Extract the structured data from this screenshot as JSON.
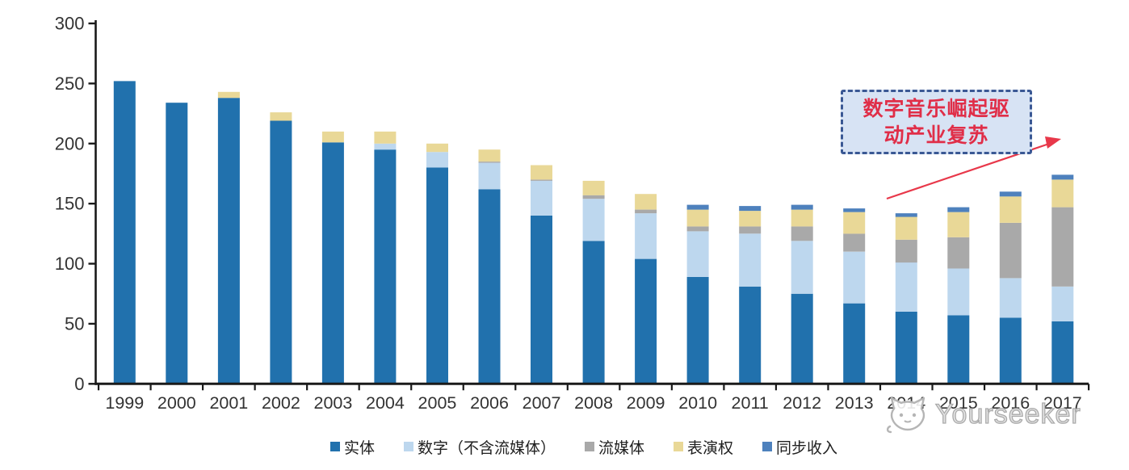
{
  "chart_data": {
    "type": "bar",
    "subtype": "stacked",
    "title": "",
    "xlabel": "",
    "ylabel": "",
    "ylim": [
      0,
      300
    ],
    "ytick_step": 50,
    "yticks": [
      "0",
      "50",
      "100",
      "150",
      "200",
      "250",
      "300"
    ],
    "grid": false,
    "legend_position": "bottom",
    "categories": [
      "1999",
      "2000",
      "2001",
      "2002",
      "2003",
      "2004",
      "2005",
      "2006",
      "2007",
      "2008",
      "2009",
      "2010",
      "2011",
      "2012",
      "2013",
      "2014",
      "2015",
      "2016",
      "2017"
    ],
    "series": [
      {
        "name": "实体",
        "color": "#2171ad",
        "values": [
          252,
          234,
          238,
          219,
          201,
          195,
          180,
          162,
          140,
          119,
          104,
          89,
          81,
          75,
          67,
          60,
          57,
          55,
          52
        ]
      },
      {
        "name": "数字（不含流媒体）",
        "color": "#bdd7ee",
        "values": [
          0,
          0,
          0,
          0,
          0,
          5,
          13,
          22,
          29,
          35,
          38,
          38,
          44,
          44,
          43,
          41,
          39,
          33,
          29
        ]
      },
      {
        "name": "流媒体",
        "color": "#a9a9a9",
        "values": [
          0,
          0,
          0,
          0,
          0,
          0,
          0,
          1,
          1,
          3,
          3,
          4,
          6,
          12,
          15,
          19,
          26,
          46,
          66
        ]
      },
      {
        "name": "表演权",
        "color": "#e9d897",
        "values": [
          0,
          0,
          5,
          7,
          9,
          10,
          7,
          10,
          12,
          12,
          13,
          14,
          13,
          14,
          18,
          19,
          21,
          22,
          23
        ]
      },
      {
        "name": "同步收入",
        "color": "#4e81bd",
        "values": [
          0,
          0,
          0,
          0,
          0,
          0,
          0,
          0,
          0,
          0,
          0,
          4,
          4,
          4,
          3,
          3,
          4,
          4,
          4
        ]
      }
    ]
  },
  "annotation": {
    "line1": "数字音乐崛起驱",
    "line2": "动产业复苏",
    "text_color": "#e02e48",
    "box_fill": "#d7e3f4",
    "box_border": "#3a5894",
    "arrow_color": "#e8384a"
  },
  "watermark": {
    "text": "Yourseeker",
    "icon": "cat-logo-icon"
  },
  "axis": {
    "line_color": "#1a1a1a",
    "tick_label_color": "#333333"
  }
}
